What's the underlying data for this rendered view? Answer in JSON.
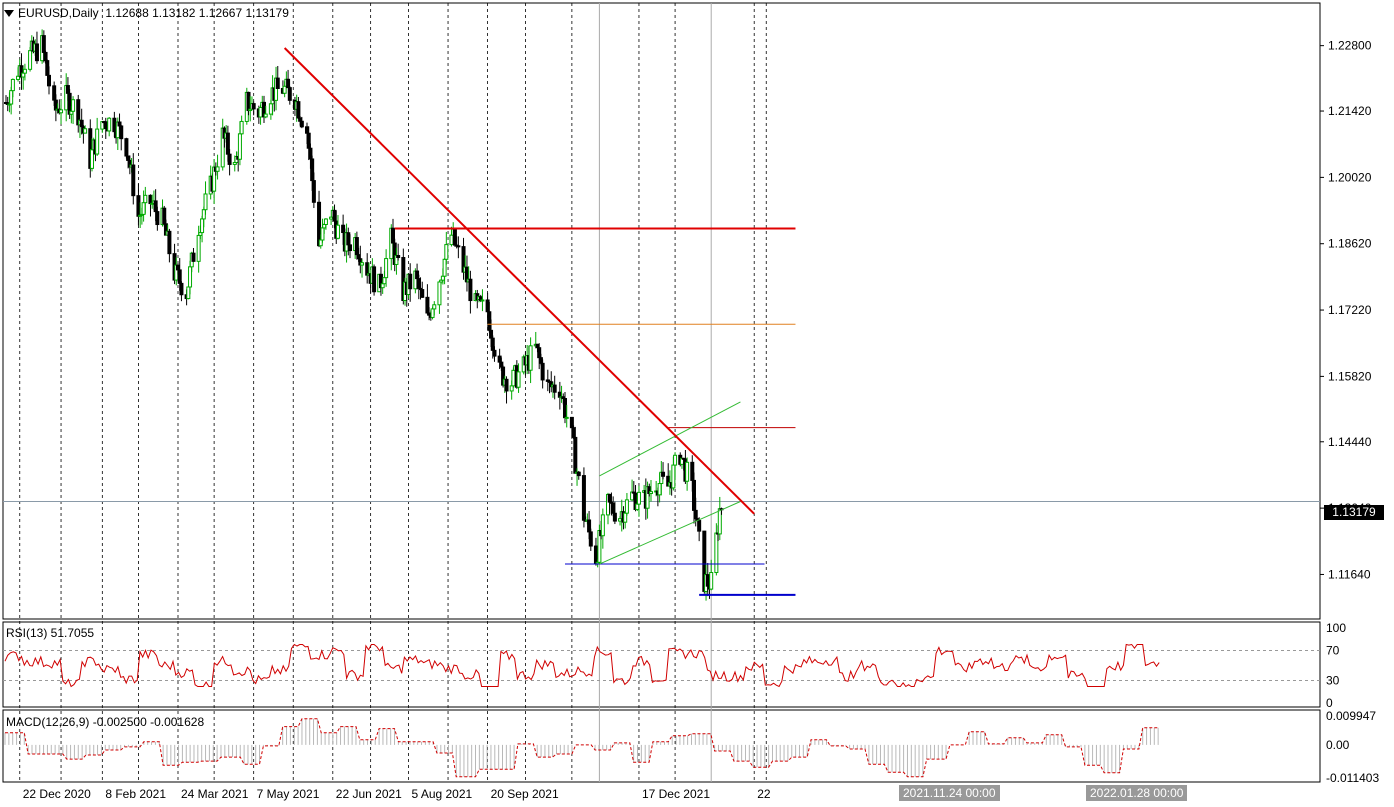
{
  "header": {
    "symbol_label": "EURUSD,Daily",
    "ohlc_text": "1.12688 1.13182 1.12667 1.13179",
    "menu_icon": "triangle-down-icon"
  },
  "current_price_label": "1.13179",
  "rsi": {
    "label": "RSI(13) 51.7055",
    "levels": [
      "100",
      "70",
      "30",
      "0"
    ]
  },
  "macd": {
    "label": "MACD(12,26,9) -0.002500 -0.001628",
    "levels": [
      "0.009947",
      "0.00",
      "-0.011403"
    ]
  },
  "crosshair_labels": [
    "2021.11.24 00:00",
    "2022.01.28 00:00"
  ],
  "colors": {
    "up": "#00aa00",
    "down": "#000000",
    "trendline": "#e00000",
    "support": "#0000cc",
    "channel": "#33bb33",
    "resistance_orange": "#e08020"
  },
  "chart_data": {
    "type": "candlestick",
    "symbol": "EURUSD",
    "timeframe": "Daily",
    "ylim": [
      1.107,
      1.237
    ],
    "price_ticks": [
      "1.22800",
      "1.21420",
      "1.20020",
      "1.18620",
      "1.17220",
      "1.15820",
      "1.14440",
      "1.13040",
      "1.11640"
    ],
    "price_tick_values": [
      1.228,
      1.2142,
      1.2002,
      1.1862,
      1.1722,
      1.1582,
      1.1444,
      1.1304,
      1.1164
    ],
    "x_labels": [
      "22 Dec 2020",
      "8 Feb 2021",
      "24 Mar 2021",
      "7 May 2021",
      "22 Jun 2021",
      "5 Aug 2021",
      "20 Sep 2021",
      "17 Dec 2021",
      "22"
    ],
    "x_label_dates": [
      "2020-12-22",
      "2021-02-08",
      "2021-03-24",
      "2021-05-07",
      "2021-06-22",
      "2021-08-05",
      "2021-09-20",
      "2021-12-17",
      "2022-02-22"
    ],
    "close_path": [
      [
        "2020-12-14",
        1.216
      ],
      [
        "2020-12-21",
        1.223
      ],
      [
        "2020-12-28",
        1.226
      ],
      [
        "2021-01-04",
        1.228
      ],
      [
        "2021-01-11",
        1.214
      ],
      [
        "2021-01-18",
        1.217
      ],
      [
        "2021-01-25",
        1.214
      ],
      [
        "2021-02-01",
        1.204
      ],
      [
        "2021-02-08",
        1.212
      ],
      [
        "2021-02-15",
        1.212
      ],
      [
        "2021-02-22",
        1.207
      ],
      [
        "2021-03-01",
        1.192
      ],
      [
        "2021-03-08",
        1.195
      ],
      [
        "2021-03-15",
        1.191
      ],
      [
        "2021-03-22",
        1.18
      ],
      [
        "2021-03-29",
        1.176
      ],
      [
        "2021-04-05",
        1.19
      ],
      [
        "2021-04-12",
        1.198
      ],
      [
        "2021-04-19",
        1.209
      ],
      [
        "2021-04-26",
        1.202
      ],
      [
        "2021-05-03",
        1.216
      ],
      [
        "2021-05-10",
        1.214
      ],
      [
        "2021-05-17",
        1.218
      ],
      [
        "2021-05-24",
        1.219
      ],
      [
        "2021-05-31",
        1.217
      ],
      [
        "2021-06-07",
        1.21
      ],
      [
        "2021-06-14",
        1.186
      ],
      [
        "2021-06-21",
        1.193
      ],
      [
        "2021-06-28",
        1.186
      ],
      [
        "2021-07-05",
        1.187
      ],
      [
        "2021-07-12",
        1.181
      ],
      [
        "2021-07-19",
        1.177
      ],
      [
        "2021-07-26",
        1.187
      ],
      [
        "2021-08-02",
        1.176
      ],
      [
        "2021-08-09",
        1.179
      ],
      [
        "2021-08-16",
        1.17
      ],
      [
        "2021-08-23",
        1.179
      ],
      [
        "2021-08-30",
        1.188
      ],
      [
        "2021-09-06",
        1.181
      ],
      [
        "2021-09-13",
        1.173
      ],
      [
        "2021-09-20",
        1.172
      ],
      [
        "2021-09-27",
        1.159
      ],
      [
        "2021-10-04",
        1.157
      ],
      [
        "2021-10-11",
        1.16
      ],
      [
        "2021-10-18",
        1.164
      ],
      [
        "2021-10-25",
        1.156
      ],
      [
        "2021-11-01",
        1.156
      ],
      [
        "2021-11-08",
        1.145
      ],
      [
        "2021-11-15",
        1.129
      ],
      [
        "2021-11-22",
        1.12
      ],
      [
        "2021-11-29",
        1.131
      ],
      [
        "2021-12-06",
        1.129
      ],
      [
        "2021-12-13",
        1.133
      ],
      [
        "2021-12-20",
        1.132
      ],
      [
        "2021-12-27",
        1.136
      ],
      [
        "2022-01-03",
        1.135
      ],
      [
        "2022-01-10",
        1.142
      ],
      [
        "2022-01-17",
        1.134
      ],
      [
        "2022-01-24",
        1.115
      ],
      [
        "2022-01-28",
        1.1145
      ],
      [
        "2022-02-02",
        1.13
      ],
      [
        "2022-02-04",
        1.1318
      ]
    ],
    "annotations": {
      "trendline": {
        "from": [
          "2021-05-25",
          1.2275
        ],
        "to": [
          "2022-02-22",
          1.1292
        ]
      },
      "resistance_red": {
        "from": [
          "2021-07-28",
          1.1894
        ],
        "to": [
          "2022-03-18",
          1.1894
        ],
        "price": 1.1894
      },
      "resistance_orange": {
        "from": [
          "2021-09-20",
          1.1692
        ],
        "to": [
          "2022-03-18",
          1.1692
        ],
        "price": 1.1692
      },
      "resistance_thin": {
        "from": [
          "2022-01-03",
          1.1474
        ],
        "to": [
          "2022-03-18",
          1.1474
        ],
        "price": 1.1474
      },
      "support_thin": {
        "from": [
          "2021-11-04",
          1.1186
        ],
        "to": [
          "2022-02-28",
          1.1186
        ],
        "price": 1.1186
      },
      "support_bold": {
        "from": [
          "2022-01-21",
          1.1121
        ],
        "to": [
          "2022-03-18",
          1.1121
        ],
        "price": 1.1121
      },
      "channel_upper": {
        "from": [
          "2021-11-24",
          1.1372
        ],
        "to": [
          "2022-02-14",
          1.1528
        ]
      },
      "channel_lower": {
        "from": [
          "2021-11-24",
          1.1186
        ],
        "to": [
          "2022-02-14",
          1.1318
        ]
      }
    },
    "rsi_period": 13,
    "rsi_last": 51.7055,
    "rsi_levels": [
      70,
      30
    ],
    "macd_params": [
      12,
      26,
      9
    ],
    "macd_value": -0.0025,
    "macd_signal": -0.001628,
    "macd_ylim": [
      -0.011403,
      0.009947
    ],
    "grid": "vertical dashed",
    "crosshair_dates": [
      "2021-11-24",
      "2022-01-28"
    ]
  }
}
